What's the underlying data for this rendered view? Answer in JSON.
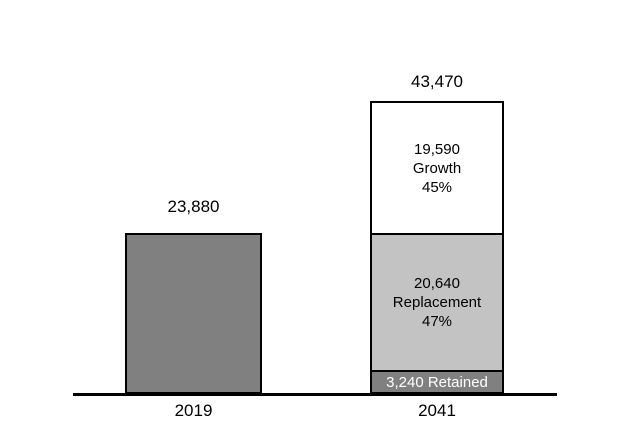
{
  "chart_data": {
    "type": "bar",
    "subtype": "stacked",
    "title": "",
    "xlabel": "",
    "ylabel": "",
    "background": "#ffffff",
    "grid": false,
    "legend": "none",
    "axis_line_color": "#000000",
    "categories": [
      "2019",
      "2041"
    ],
    "bars": [
      {
        "category": "2019",
        "total_label": "23,880",
        "total_value": 23880,
        "segments": [
          {
            "name": "2019 total",
            "value": 23880,
            "color": "#808080",
            "label": ""
          }
        ]
      },
      {
        "category": "2041",
        "total_label": "43,470",
        "total_value": 43470,
        "segments": [
          {
            "name": "Growth",
            "value": 19590,
            "value_label": "19,590",
            "percent_label": "45%",
            "color": "#ffffff",
            "text_color": "#000000"
          },
          {
            "name": "Replacement",
            "value": 20640,
            "value_label": "20,640",
            "percent_label": "47%",
            "color": "#c3c3c3",
            "text_color": "#000000"
          },
          {
            "name": "Retained",
            "value": 3240,
            "label": "3,240 Retained",
            "color": "#808080",
            "text_color": "#ffffff"
          }
        ]
      }
    ]
  }
}
